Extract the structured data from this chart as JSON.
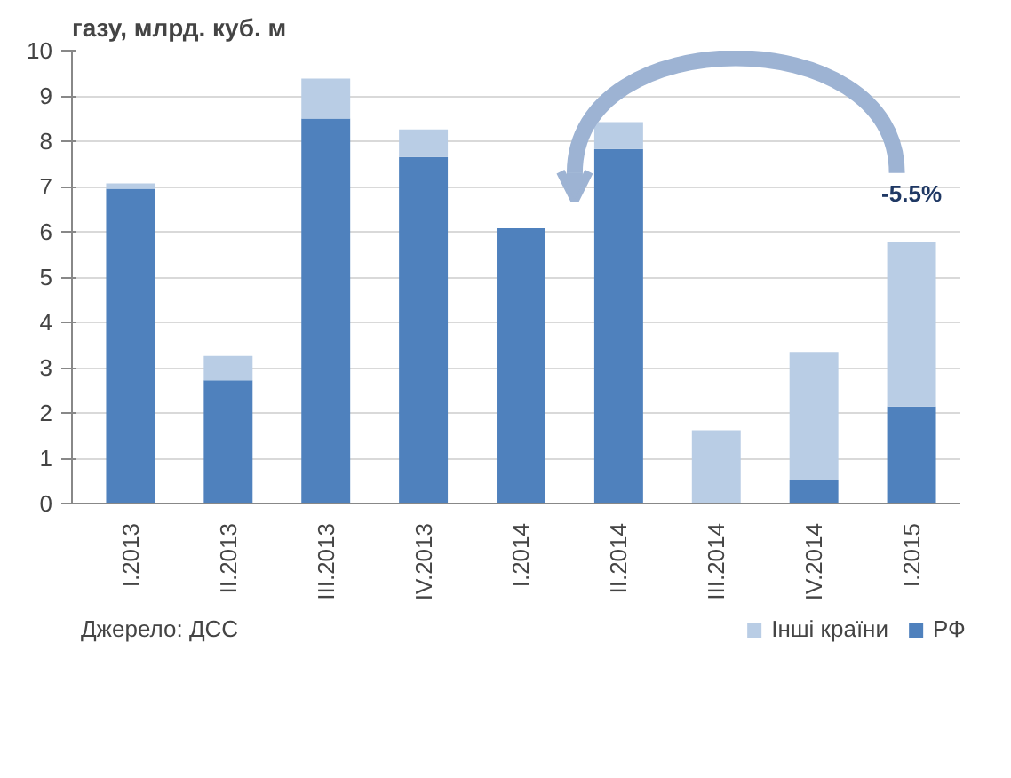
{
  "chart_data": {
    "type": "bar",
    "title": "газу, млрд. куб. м",
    "stacked": true,
    "categories": [
      "I.2013",
      "II.2013",
      "III.2013",
      "IV.2013",
      "I.2014",
      "II.2014",
      "III.2014",
      "IV.2014",
      "I.2015"
    ],
    "series": [
      {
        "name": "РФ",
        "color": "#4f81bd",
        "values": [
          6.95,
          2.72,
          8.5,
          7.65,
          6.08,
          7.83,
          0,
          0.52,
          2.14
        ]
      },
      {
        "name": "Інші країни",
        "color": "#b9cde5",
        "values": [
          0.12,
          0.54,
          0.88,
          0.61,
          0,
          0.59,
          1.62,
          2.83,
          3.63
        ]
      }
    ],
    "ylim": [
      0,
      10
    ],
    "yticks": [
      0,
      1,
      2,
      3,
      4,
      5,
      6,
      7,
      8,
      9,
      10
    ],
    "grid": "y",
    "legend": "bottom right",
    "annotations": [
      "-5.5%",
      "Джерело: ДСС"
    ]
  }
}
